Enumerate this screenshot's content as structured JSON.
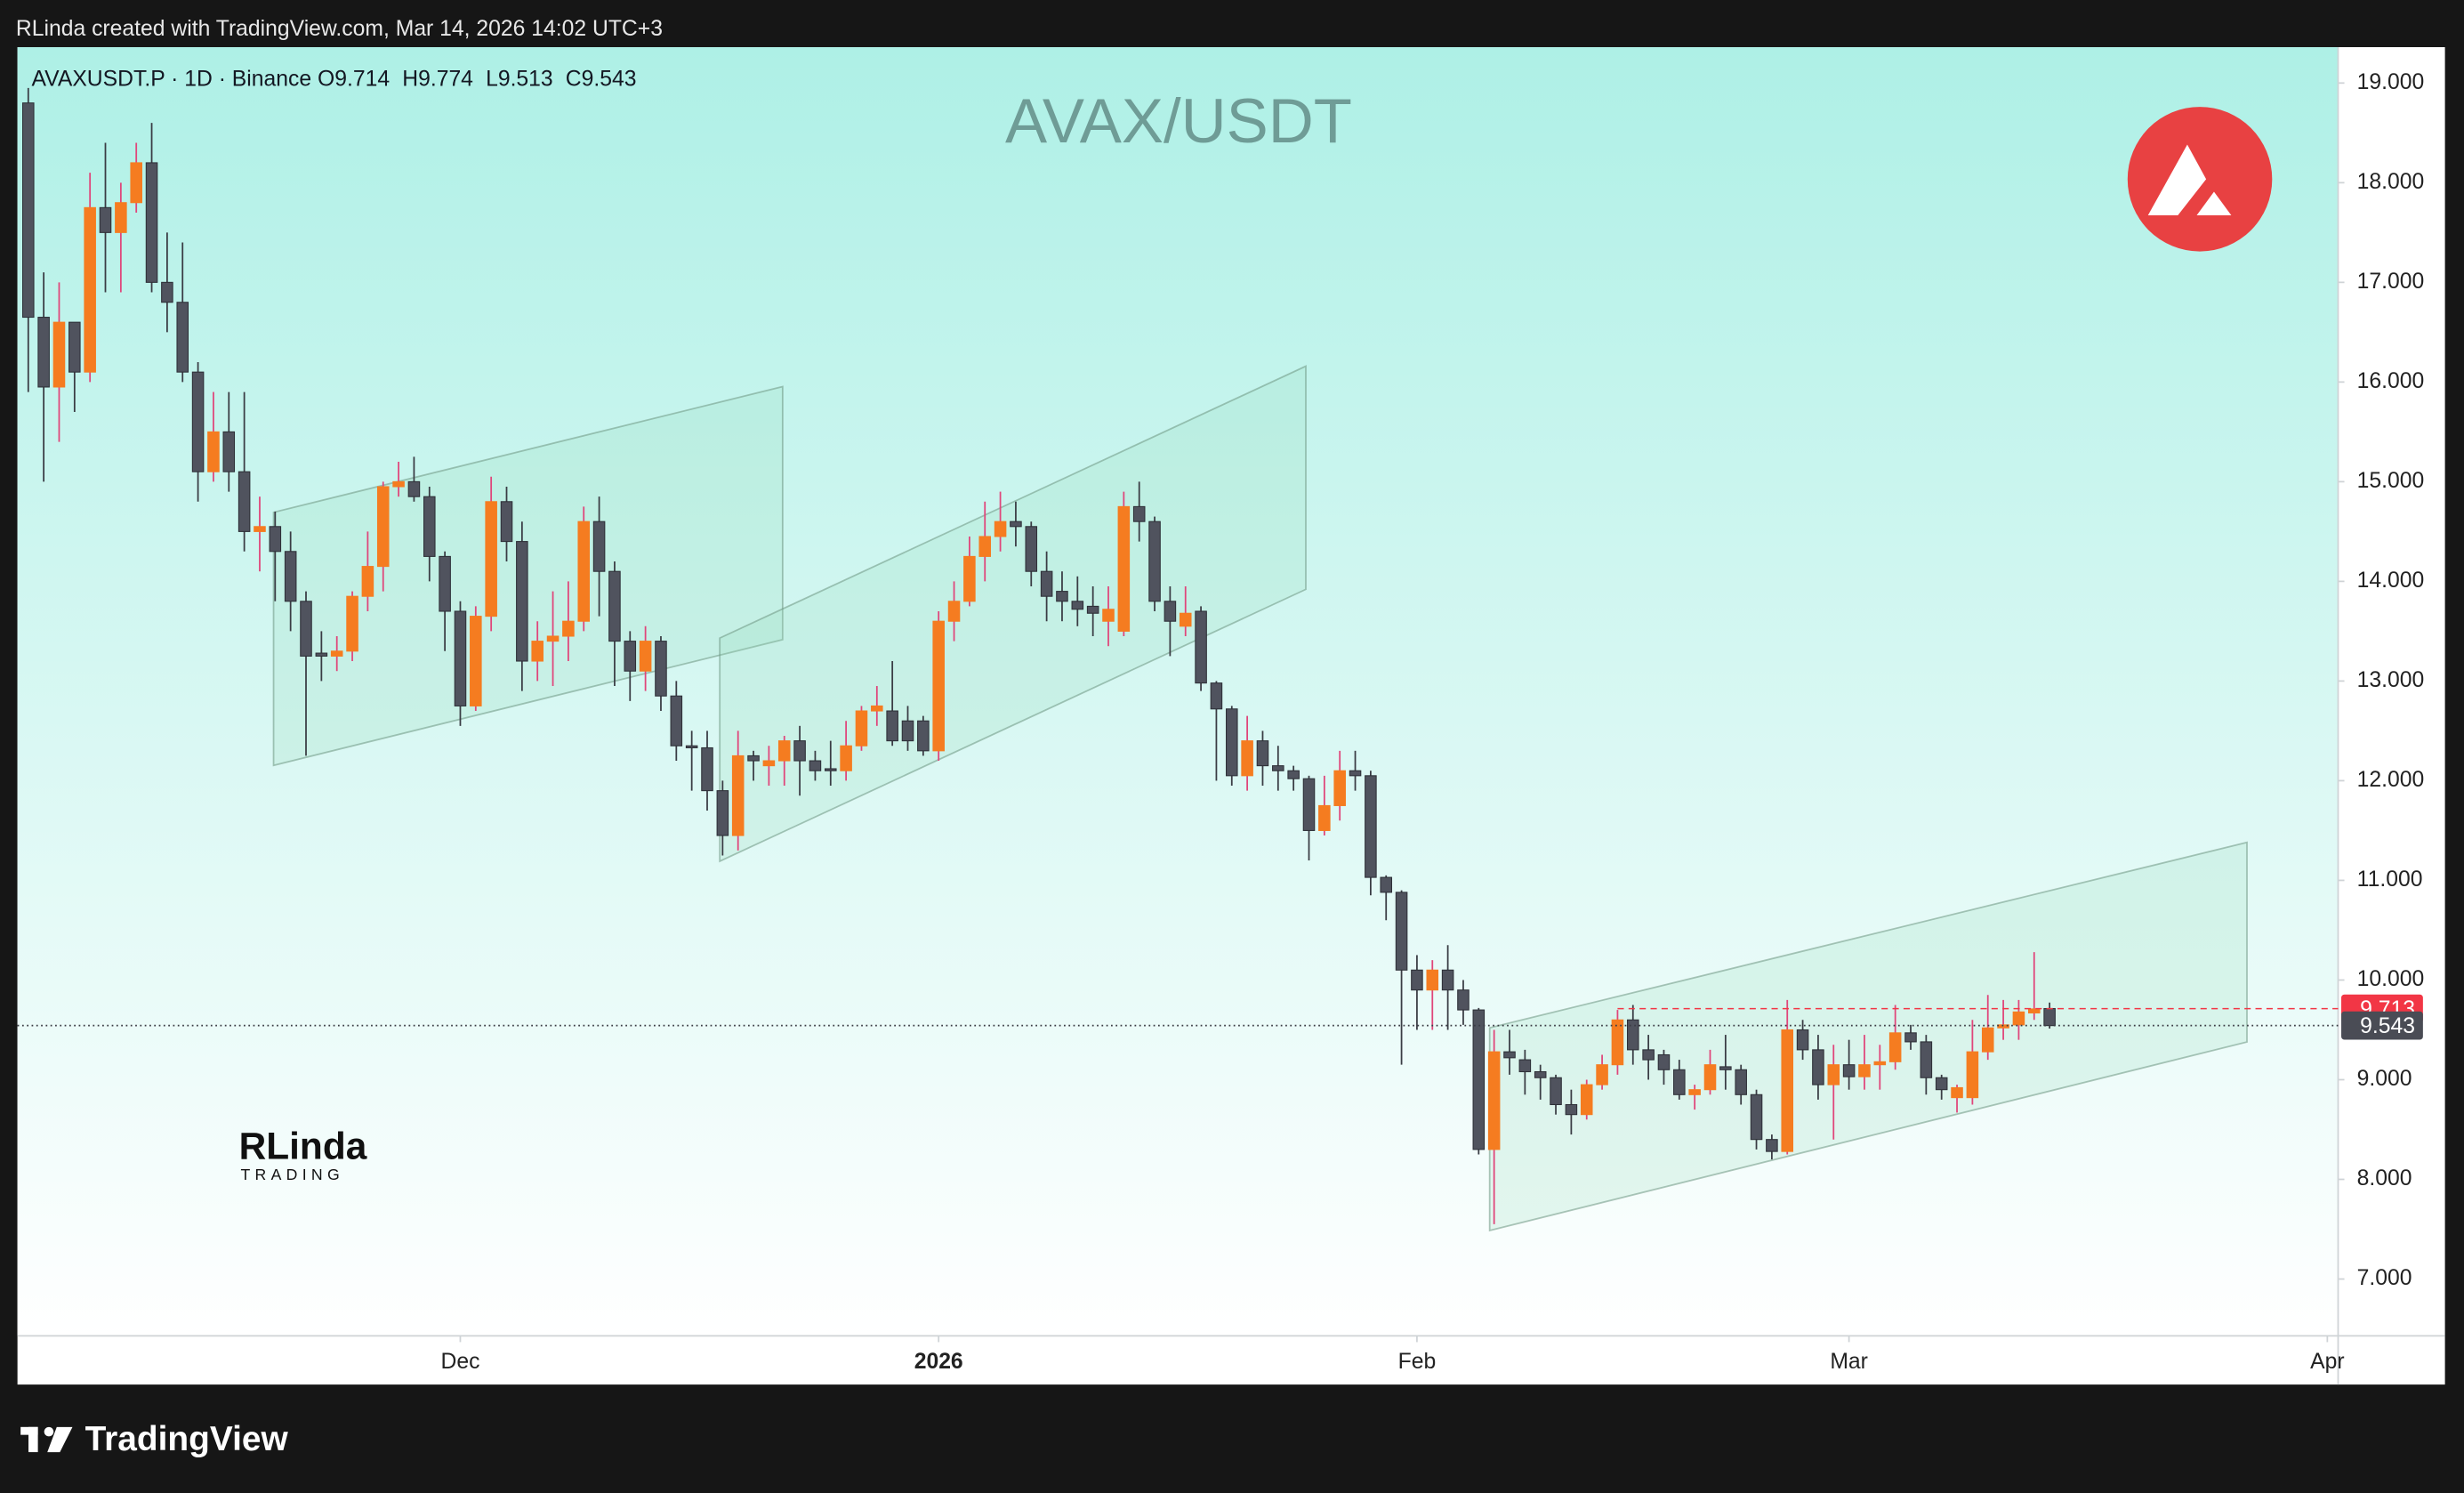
{
  "header": {
    "credit": "RLinda created with TradingView.com, Mar 14, 2026 14:02 UTC+3"
  },
  "footer": {
    "brand": "TradingView"
  },
  "watermark": {
    "name": "RLinda",
    "sub": "TRADING"
  },
  "chart_data": {
    "type": "candlestick",
    "title": "AVAX/USDT",
    "legend": {
      "symbol": "AVAXUSDT.P · 1D · Binance",
      "ohlc": [
        "O9.714",
        "H9.774",
        "L9.513",
        "C9.543"
      ]
    },
    "up_color": "#f57c20",
    "down_color": "#50535e",
    "up_wick_color": "#e0457a",
    "down_wick_color": "#3a3c44",
    "x": [
      0,
      1,
      2,
      3,
      4,
      5,
      6,
      7,
      8,
      9,
      10,
      11,
      12,
      13,
      14,
      15,
      16,
      17,
      18,
      19,
      20,
      21,
      22,
      23,
      24,
      25,
      26,
      27,
      28,
      29,
      30,
      31,
      32,
      33,
      34,
      35,
      36,
      37,
      38,
      39,
      40,
      41,
      42,
      43,
      44,
      45,
      46,
      47,
      48,
      49,
      50,
      51,
      52,
      53,
      54,
      55,
      56,
      57,
      58,
      59,
      60,
      61,
      62,
      63,
      64,
      65,
      66,
      67,
      68,
      69,
      70,
      71,
      72,
      73,
      74,
      75,
      76,
      77,
      78,
      79,
      80,
      81,
      82,
      83,
      84,
      85,
      86,
      87,
      88,
      89,
      90,
      91,
      92,
      93,
      94,
      95,
      96,
      97,
      98,
      99,
      100,
      101,
      102,
      103,
      104,
      105,
      106,
      107,
      108,
      109,
      110,
      111,
      112,
      113,
      114,
      115,
      116,
      117,
      118,
      119,
      120,
      121,
      122,
      123,
      124,
      125,
      126,
      127,
      128,
      129,
      130,
      131
    ],
    "open": [
      18.8,
      16.65,
      15.95,
      16.6,
      16.1,
      17.75,
      17.5,
      17.8,
      18.2,
      17.0,
      16.8,
      16.1,
      15.1,
      15.5,
      15.1,
      14.5,
      14.55,
      14.3,
      13.8,
      13.28,
      13.25,
      13.3,
      13.85,
      14.15,
      14.95,
      15.0,
      14.85,
      14.25,
      13.7,
      12.75,
      13.65,
      14.8,
      14.4,
      13.2,
      13.4,
      13.45,
      13.6,
      14.6,
      14.1,
      13.4,
      13.1,
      13.4,
      12.85,
      12.35,
      12.33,
      11.9,
      11.45,
      12.25,
      12.15,
      12.2,
      12.4,
      12.2,
      12.12,
      12.1,
      12.35,
      12.7,
      12.7,
      12.6,
      12.6,
      12.3,
      13.6,
      13.8,
      14.25,
      14.45,
      14.6,
      14.55,
      14.1,
      13.9,
      13.8,
      13.75,
      13.6,
      13.5,
      14.75,
      14.6,
      13.8,
      13.55,
      13.7,
      12.98,
      12.72,
      12.05,
      12.4,
      12.15,
      12.1,
      12.02,
      11.5,
      11.75,
      12.1,
      12.05,
      11.03,
      10.88,
      10.1,
      9.9,
      10.1,
      9.9,
      9.7,
      8.3,
      9.28,
      9.2,
      9.08,
      9.02,
      8.75,
      8.65,
      8.95,
      9.15,
      9.6,
      9.3,
      9.25,
      9.1,
      8.85,
      8.9,
      9.13,
      9.1,
      8.85,
      8.4,
      8.28,
      9.5,
      9.3,
      8.95,
      9.15,
      9.03,
      9.15,
      9.18,
      9.47,
      9.38,
      9.02,
      8.82,
      8.82,
      9.28,
      9.52,
      9.55,
      9.67,
      9.714
    ],
    "high": [
      18.95,
      17.1,
      17.0,
      16.6,
      18.1,
      18.4,
      18.0,
      18.4,
      18.6,
      17.5,
      17.4,
      16.2,
      15.9,
      15.9,
      15.9,
      14.85,
      14.7,
      14.5,
      13.9,
      13.5,
      13.45,
      13.9,
      14.5,
      15.0,
      15.2,
      15.25,
      14.95,
      14.3,
      13.8,
      13.75,
      15.05,
      14.95,
      14.6,
      13.6,
      13.9,
      14.0,
      14.75,
      14.85,
      14.2,
      13.5,
      13.55,
      13.45,
      13.0,
      12.5,
      12.5,
      12.0,
      12.5,
      12.3,
      12.35,
      12.45,
      12.55,
      12.3,
      12.4,
      12.6,
      12.75,
      12.95,
      13.2,
      12.75,
      12.65,
      13.7,
      14.0,
      14.45,
      14.8,
      14.9,
      14.8,
      14.6,
      14.3,
      14.1,
      14.05,
      13.95,
      13.95,
      14.9,
      15.0,
      14.65,
      13.95,
      13.95,
      13.75,
      13.0,
      12.75,
      12.65,
      12.5,
      12.35,
      12.15,
      12.05,
      12.05,
      12.3,
      12.3,
      12.1,
      11.05,
      10.9,
      10.25,
      10.2,
      10.35,
      10.0,
      9.72,
      9.5,
      9.5,
      9.3,
      9.15,
      9.05,
      8.9,
      9.0,
      9.25,
      9.7,
      9.75,
      9.45,
      9.3,
      9.2,
      8.95,
      9.3,
      9.45,
      9.15,
      8.9,
      8.45,
      9.8,
      9.6,
      9.45,
      9.35,
      9.4,
      9.45,
      9.35,
      9.75,
      9.55,
      9.45,
      9.05,
      8.95,
      9.6,
      9.85,
      9.8,
      9.8,
      10.28,
      9.774
    ],
    "low": [
      15.9,
      15.0,
      15.4,
      15.7,
      16.0,
      16.9,
      16.9,
      17.7,
      16.9,
      16.5,
      16.0,
      14.8,
      15.0,
      14.9,
      14.3,
      14.1,
      13.8,
      13.5,
      12.25,
      13.0,
      13.1,
      13.2,
      13.7,
      13.9,
      14.85,
      14.8,
      14.0,
      13.3,
      12.55,
      12.7,
      13.5,
      14.2,
      12.9,
      13.0,
      12.95,
      13.2,
      13.5,
      13.65,
      12.95,
      12.8,
      12.9,
      12.7,
      12.2,
      11.9,
      11.7,
      11.25,
      11.3,
      12.0,
      11.95,
      11.95,
      11.85,
      12.0,
      11.95,
      12.0,
      12.3,
      12.55,
      12.35,
      12.3,
      12.25,
      12.2,
      13.4,
      13.75,
      14.0,
      14.3,
      14.35,
      13.95,
      13.6,
      13.6,
      13.55,
      13.45,
      13.35,
      13.45,
      14.4,
      13.7,
      13.25,
      13.45,
      12.9,
      12.0,
      11.95,
      11.9,
      11.95,
      11.9,
      11.9,
      11.2,
      11.45,
      11.6,
      11.9,
      10.85,
      10.6,
      9.15,
      9.5,
      9.5,
      9.5,
      9.55,
      8.25,
      7.55,
      9.05,
      8.85,
      8.8,
      8.65,
      8.45,
      8.6,
      8.9,
      9.05,
      9.15,
      9.0,
      8.95,
      8.8,
      8.7,
      8.85,
      8.9,
      8.75,
      8.3,
      8.2,
      8.25,
      9.2,
      8.8,
      8.4,
      8.9,
      8.9,
      8.9,
      9.1,
      9.3,
      8.85,
      8.8,
      8.67,
      8.75,
      9.2,
      9.4,
      9.4,
      9.6,
      9.513
    ],
    "close": [
      16.65,
      15.95,
      16.6,
      16.1,
      17.75,
      17.5,
      17.8,
      18.2,
      17.0,
      16.8,
      16.1,
      15.1,
      15.5,
      15.1,
      14.5,
      14.55,
      14.3,
      13.8,
      13.25,
      13.25,
      13.3,
      13.85,
      14.15,
      14.95,
      15.0,
      14.85,
      14.25,
      13.7,
      12.75,
      13.65,
      14.8,
      14.4,
      13.2,
      13.4,
      13.45,
      13.6,
      14.6,
      14.1,
      13.4,
      13.1,
      13.4,
      12.85,
      12.35,
      12.33,
      11.9,
      11.45,
      12.25,
      12.2,
      12.2,
      12.4,
      12.2,
      12.1,
      12.1,
      12.35,
      12.7,
      12.75,
      12.4,
      12.4,
      12.3,
      13.6,
      13.8,
      14.25,
      14.45,
      14.6,
      14.55,
      14.1,
      13.85,
      13.8,
      13.72,
      13.68,
      13.72,
      14.75,
      14.6,
      13.8,
      13.6,
      13.68,
      12.98,
      12.72,
      12.05,
      12.4,
      12.15,
      12.1,
      12.02,
      11.5,
      11.75,
      12.1,
      12.05,
      11.03,
      10.88,
      10.1,
      9.9,
      10.1,
      9.9,
      9.7,
      8.3,
      9.28,
      9.22,
      9.08,
      9.02,
      8.75,
      8.65,
      8.95,
      9.15,
      9.6,
      9.3,
      9.2,
      9.1,
      8.85,
      8.9,
      9.15,
      9.1,
      8.85,
      8.4,
      8.28,
      9.5,
      9.3,
      8.95,
      9.15,
      9.03,
      9.15,
      9.18,
      9.47,
      9.38,
      9.02,
      8.9,
      8.92,
      9.28,
      9.52,
      9.55,
      9.68,
      9.71,
      9.543
    ],
    "xlim": [
      -0.7,
      149.7
    ],
    "xticks": [
      {
        "value": 28,
        "label": "Dec"
      },
      {
        "value": 59,
        "label": "2026"
      },
      {
        "value": 90,
        "label": "Feb"
      },
      {
        "value": 118,
        "label": "Mar"
      },
      {
        "value": 149,
        "label": "Apr"
      }
    ],
    "ylim": [
      6.43,
      19.36
    ],
    "yticks": [
      {
        "value": 7,
        "label": "7.000"
      },
      {
        "value": 8,
        "label": "8.000"
      },
      {
        "value": 9,
        "label": "9.000"
      },
      {
        "value": 10,
        "label": "10.000"
      },
      {
        "value": 11,
        "label": "11.000"
      },
      {
        "value": 12,
        "label": "12.000"
      },
      {
        "value": 13,
        "label": "13.000"
      },
      {
        "value": 14,
        "label": "14.000"
      },
      {
        "value": 15,
        "label": "15.000"
      },
      {
        "value": 16,
        "label": "16.000"
      },
      {
        "value": 17,
        "label": "17.000"
      },
      {
        "value": 18,
        "label": "18.000"
      },
      {
        "value": 19,
        "label": "19.000"
      }
    ],
    "price_markers": [
      {
        "value": 9.713,
        "color": "#f23645"
      },
      {
        "value": 9.543,
        "color": "#4a4c55"
      }
    ]
  }
}
